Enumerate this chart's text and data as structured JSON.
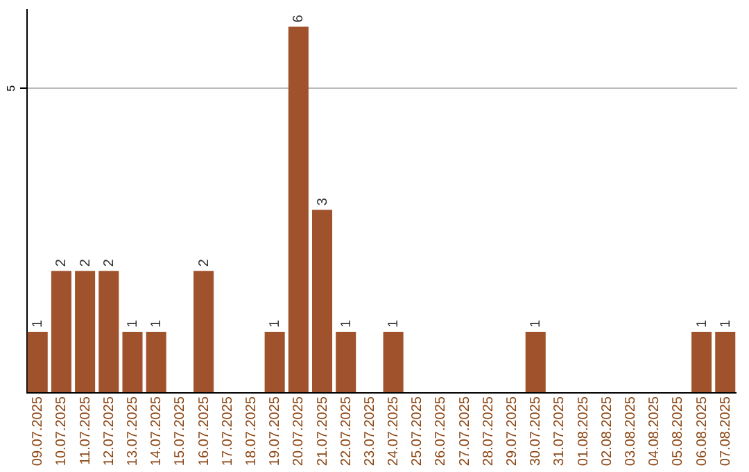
{
  "chart_data": {
    "type": "bar",
    "categories": [
      "09.07.2025",
      "10.07.2025",
      "11.07.2025",
      "12.07.2025",
      "13.07.2025",
      "14.07.2025",
      "15.07.2025",
      "16.07.2025",
      "17.07.2025",
      "18.07.2025",
      "19.07.2025",
      "20.07.2025",
      "21.07.2025",
      "22.07.2025",
      "23.07.2025",
      "24.07.2025",
      "25.07.2025",
      "26.07.2025",
      "27.07.2025",
      "28.07.2025",
      "29.07.2025",
      "30.07.2025",
      "31.07.2025",
      "01.08.2025",
      "02.08.2025",
      "03.08.2025",
      "04.08.2025",
      "05.08.2025",
      "06.08.2025",
      "07.08.2025"
    ],
    "values": [
      1,
      2,
      2,
      2,
      1,
      1,
      0,
      2,
      0,
      0,
      1,
      6,
      3,
      1,
      0,
      1,
      0,
      0,
      0,
      0,
      0,
      1,
      0,
      0,
      0,
      0,
      0,
      0,
      1,
      1
    ],
    "value_labels": [
      "1",
      "2",
      "2",
      "2",
      "1",
      "1",
      null,
      "2",
      null,
      null,
      "1",
      "6",
      "3",
      "1",
      null,
      "1",
      null,
      null,
      null,
      null,
      null,
      "1",
      null,
      null,
      null,
      null,
      null,
      null,
      "1",
      "1"
    ],
    "color": "#a0522d",
    "ylim": [
      0,
      6.3
    ],
    "yticks": [
      5
    ],
    "grid": "y"
  }
}
